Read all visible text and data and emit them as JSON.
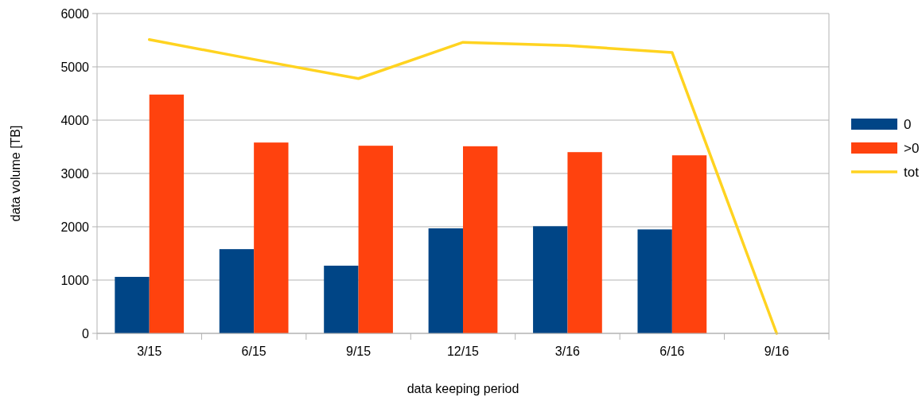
{
  "chart_data": {
    "type": "bar",
    "xlabel": "data keeping period",
    "ylabel": "data volume [TB]",
    "categories": [
      "3/15",
      "6/15",
      "9/15",
      "12/15",
      "3/16",
      "6/16",
      "9/16"
    ],
    "series": [
      {
        "name": "0",
        "color": "#004586",
        "values": [
          1060,
          1580,
          1270,
          1970,
          2010,
          1950,
          null
        ]
      },
      {
        "name": ">0",
        "color": "#ff420e",
        "values": [
          4480,
          3580,
          3520,
          3510,
          3400,
          3340,
          null
        ]
      },
      {
        "name": "tot",
        "type": "line",
        "color": "#ffd320",
        "values": [
          5510,
          5140,
          4780,
          5460,
          5400,
          5270,
          0
        ]
      }
    ],
    "ylim": [
      0,
      6000
    ],
    "yticks": [
      0,
      1000,
      2000,
      3000,
      4000,
      5000,
      6000
    ],
    "grid": "y",
    "legend": "right"
  }
}
